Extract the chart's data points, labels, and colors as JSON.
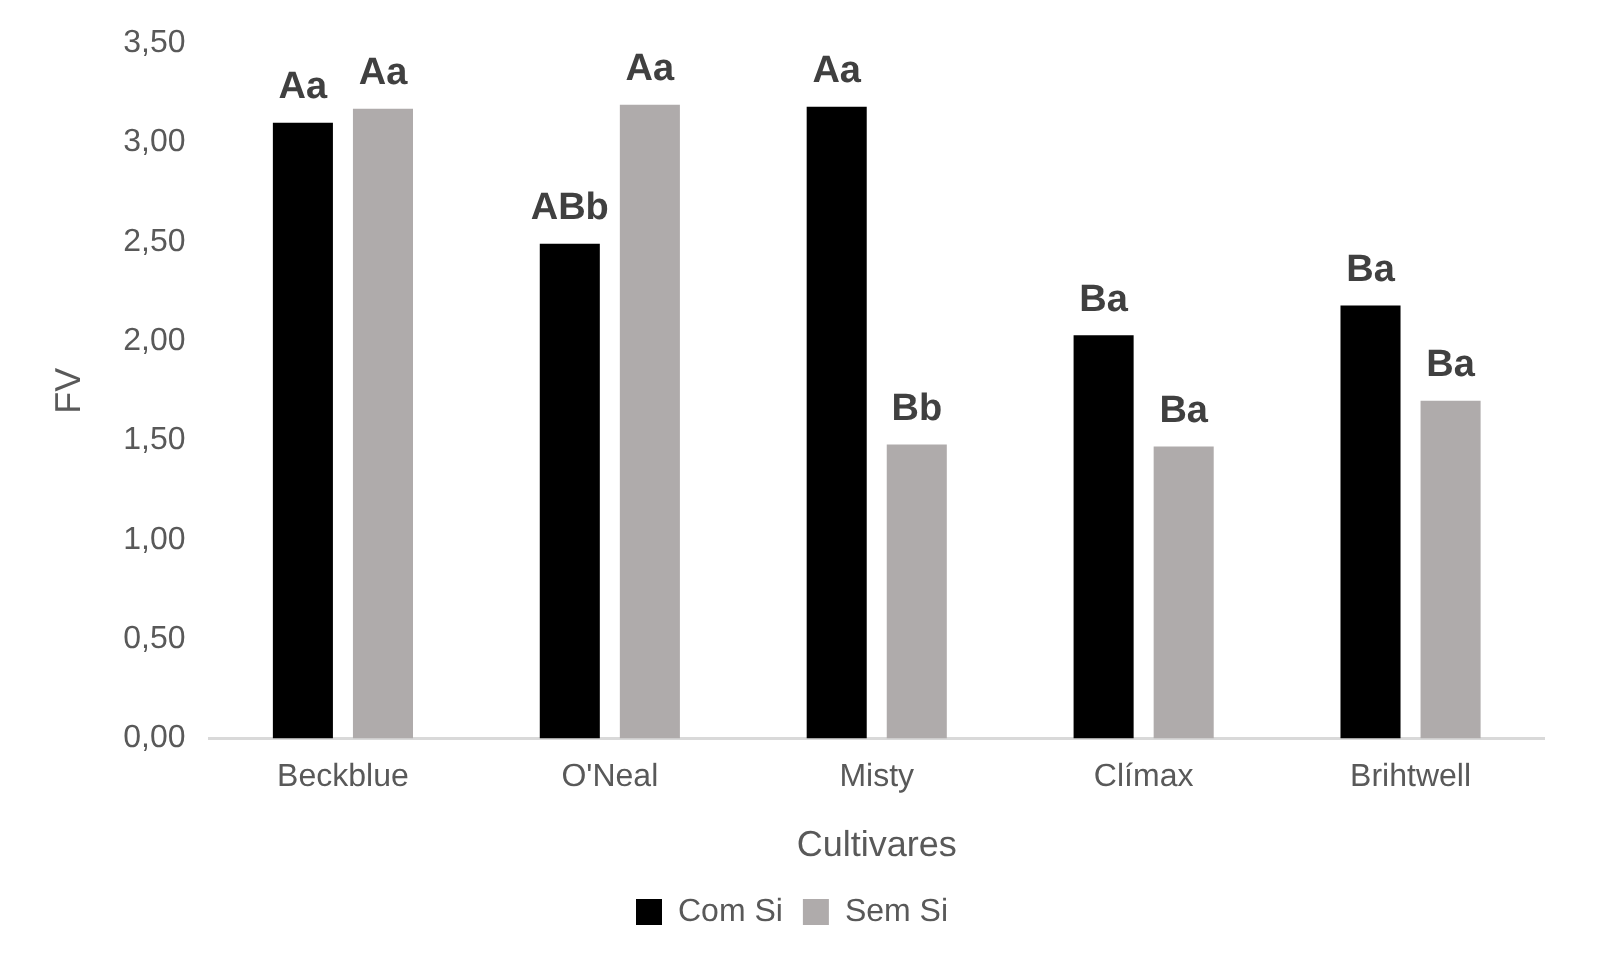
{
  "chart_data": {
    "type": "bar",
    "xlabel": "Cultivares",
    "ylabel": "FV",
    "categories": [
      "Beckblue",
      "O'Neal",
      "Misty",
      "Clímax",
      "Brihtwell"
    ],
    "series": [
      {
        "name": "Com Si",
        "color": "#000000",
        "values": [
          3.1,
          2.49,
          3.18,
          2.03,
          2.18
        ],
        "value_labels": [
          "Aa",
          "ABb",
          "Aa",
          "Ba",
          "Ba"
        ]
      },
      {
        "name": "Sem Si",
        "color": "#afabab",
        "values": [
          3.17,
          3.19,
          1.48,
          1.47,
          1.7
        ],
        "value_labels": [
          "Aa",
          "Aa",
          "Bb",
          "Ba",
          "Ba"
        ]
      }
    ],
    "ylim": [
      0,
      3.5
    ],
    "yticks": [
      {
        "value": 0,
        "label": "0,00"
      },
      {
        "value": 0.5,
        "label": "0,50"
      },
      {
        "value": 1,
        "label": "1,00"
      },
      {
        "value": 1.5,
        "label": "1,50"
      },
      {
        "value": 2,
        "label": "2,00"
      },
      {
        "value": 2.5,
        "label": "2,50"
      },
      {
        "value": 3,
        "label": "3,00"
      },
      {
        "value": 3.5,
        "label": "3,50"
      }
    ],
    "grid": false,
    "legend": "bottom"
  }
}
